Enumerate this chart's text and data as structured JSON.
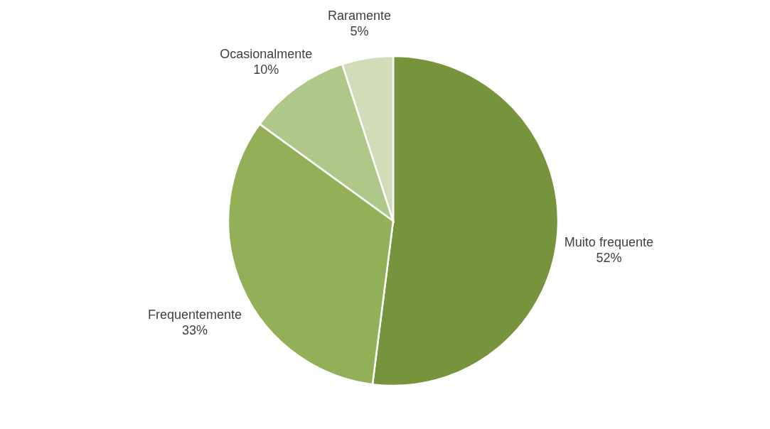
{
  "chart_data": {
    "type": "pie",
    "categories": [
      "Muito frequente",
      "Frequentemente",
      "Ocasionalmente",
      "Raramente"
    ],
    "values": [
      52,
      33,
      10,
      5
    ],
    "value_labels": [
      "52%",
      "33%",
      "10%",
      "5%"
    ],
    "colors": [
      "#77933c",
      "#93b058",
      "#b0c78a",
      "#d0ddb8"
    ]
  }
}
